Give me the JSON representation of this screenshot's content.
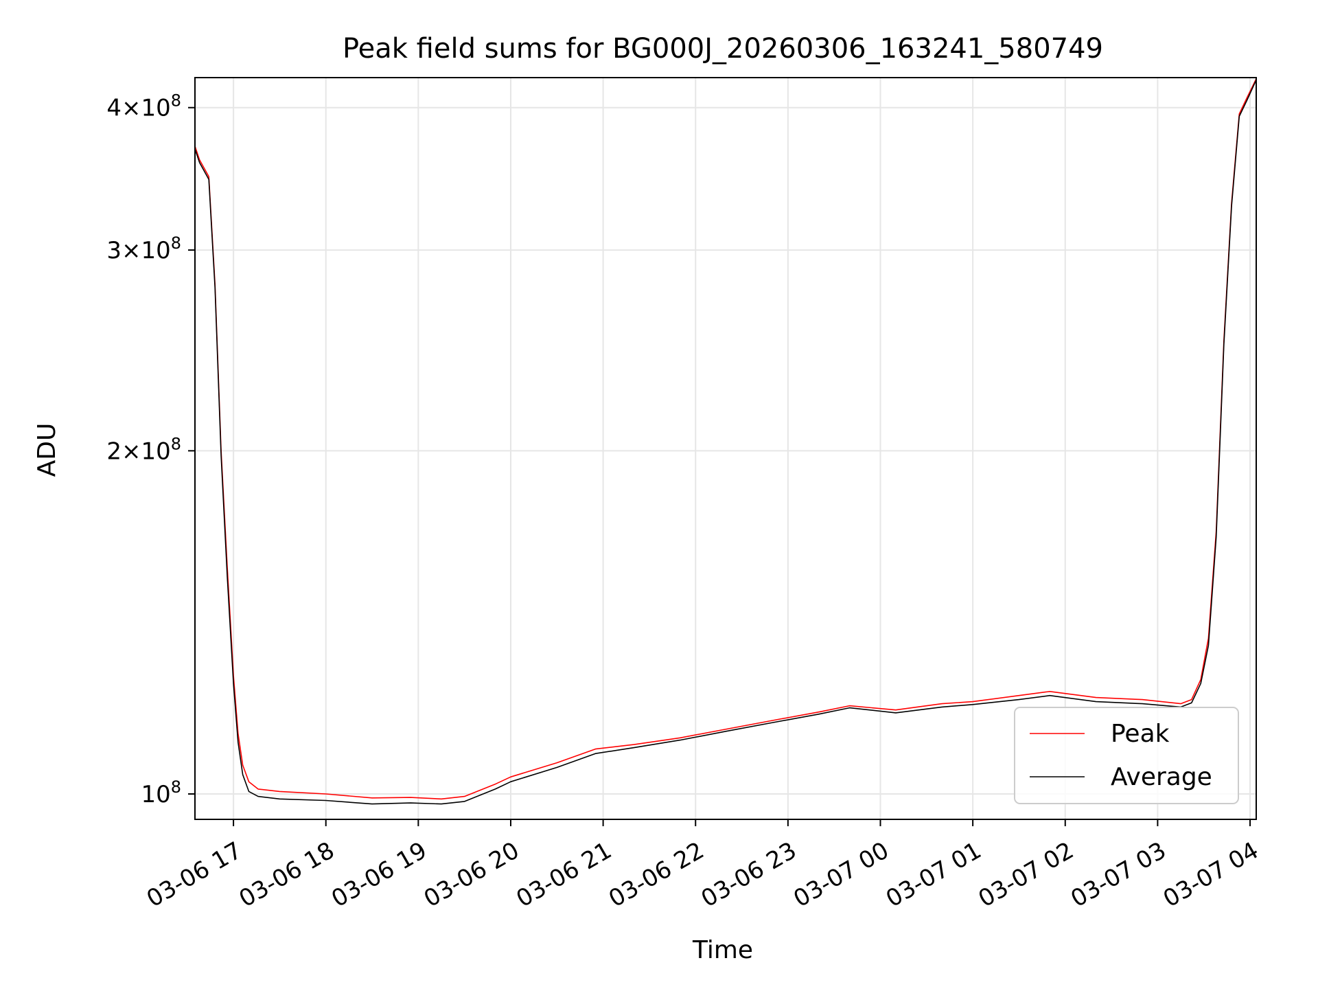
{
  "chart_data": {
    "type": "line",
    "title": "Peak field sums for BG000J_20260306_163241_580749",
    "xlabel": "Time",
    "ylabel": "ADU",
    "yscale": "log",
    "grid": true,
    "legend_position": "lower-right",
    "xlim": [
      "2026-03-06 16:35",
      "2026-03-07 04:04"
    ],
    "ylim": [
      95000000,
      425000000
    ],
    "x_ticks": [
      {
        "t": "2026-03-06 17:00",
        "label": "03-06 17"
      },
      {
        "t": "2026-03-06 18:00",
        "label": "03-06 18"
      },
      {
        "t": "2026-03-06 19:00",
        "label": "03-06 19"
      },
      {
        "t": "2026-03-06 20:00",
        "label": "03-06 20"
      },
      {
        "t": "2026-03-06 21:00",
        "label": "03-06 21"
      },
      {
        "t": "2026-03-06 22:00",
        "label": "03-06 22"
      },
      {
        "t": "2026-03-06 23:00",
        "label": "03-06 23"
      },
      {
        "t": "2026-03-07 00:00",
        "label": "03-07 00"
      },
      {
        "t": "2026-03-07 01:00",
        "label": "03-07 01"
      },
      {
        "t": "2026-03-07 02:00",
        "label": "03-07 02"
      },
      {
        "t": "2026-03-07 03:00",
        "label": "03-07 03"
      },
      {
        "t": "2026-03-07 04:00",
        "label": "03-07 04"
      }
    ],
    "y_ticks": [
      {
        "value": 100000000,
        "mant": "",
        "exp": "8",
        "base": "10"
      },
      {
        "value": 200000000,
        "mant": "2",
        "exp": "8",
        "base": "10"
      },
      {
        "value": 300000000,
        "mant": "3",
        "exp": "8",
        "base": "10"
      },
      {
        "value": 400000000,
        "mant": "4",
        "exp": "8",
        "base": "10"
      }
    ],
    "tick_times_symbol": "×",
    "series": [
      {
        "name": "Peak",
        "color": "#ff0000",
        "points": [
          [
            "2026-03-06 16:35",
            370000000
          ],
          [
            "2026-03-06 16:38",
            360000000
          ],
          [
            "2026-03-06 16:44",
            348000000
          ],
          [
            "2026-03-06 16:48",
            280000000
          ],
          [
            "2026-03-06 16:52",
            200000000
          ],
          [
            "2026-03-06 16:56",
            158000000
          ],
          [
            "2026-03-06 17:00",
            127000000
          ],
          [
            "2026-03-06 17:03",
            113000000
          ],
          [
            "2026-03-06 17:06",
            106000000
          ],
          [
            "2026-03-06 17:10",
            102500000
          ],
          [
            "2026-03-06 17:16",
            101000000
          ],
          [
            "2026-03-06 17:30",
            100500000
          ],
          [
            "2026-03-06 18:00",
            100000000
          ],
          [
            "2026-03-06 18:30",
            99200000
          ],
          [
            "2026-03-06 18:55",
            99300000
          ],
          [
            "2026-03-06 19:15",
            99000000
          ],
          [
            "2026-03-06 19:30",
            99500000
          ],
          [
            "2026-03-06 19:50",
            102000000
          ],
          [
            "2026-03-06 20:00",
            103500000
          ],
          [
            "2026-03-06 20:30",
            106500000
          ],
          [
            "2026-03-06 20:55",
            109500000
          ],
          [
            "2026-03-06 21:20",
            110500000
          ],
          [
            "2026-03-06 21:50",
            112000000
          ],
          [
            "2026-03-06 22:20",
            114000000
          ],
          [
            "2026-03-06 22:50",
            116000000
          ],
          [
            "2026-03-06 23:20",
            118000000
          ],
          [
            "2026-03-06 23:40",
            119500000
          ],
          [
            "2026-03-07 00:10",
            118500000
          ],
          [
            "2026-03-07 00:40",
            120000000
          ],
          [
            "2026-03-07 01:00",
            120500000
          ],
          [
            "2026-03-07 01:30",
            122000000
          ],
          [
            "2026-03-07 01:50",
            123000000
          ],
          [
            "2026-03-07 02:20",
            121500000
          ],
          [
            "2026-03-07 02:50",
            121000000
          ],
          [
            "2026-03-07 03:15",
            120000000
          ],
          [
            "2026-03-07 03:22",
            121000000
          ],
          [
            "2026-03-07 03:28",
            126000000
          ],
          [
            "2026-03-07 03:33",
            137000000
          ],
          [
            "2026-03-07 03:38",
            170000000
          ],
          [
            "2026-03-07 03:43",
            250000000
          ],
          [
            "2026-03-07 03:48",
            330000000
          ],
          [
            "2026-03-07 03:53",
            395000000
          ],
          [
            "2026-03-07 03:58",
            408000000
          ],
          [
            "2026-03-07 04:04",
            424000000
          ]
        ]
      },
      {
        "name": "Average",
        "color": "#000000",
        "points": [
          [
            "2026-03-06 16:35",
            368000000
          ],
          [
            "2026-03-06 16:38",
            358000000
          ],
          [
            "2026-03-06 16:44",
            346000000
          ],
          [
            "2026-03-06 16:48",
            278000000
          ],
          [
            "2026-03-06 16:52",
            198000000
          ],
          [
            "2026-03-06 16:56",
            155000000
          ],
          [
            "2026-03-06 17:00",
            125000000
          ],
          [
            "2026-03-06 17:03",
            111000000
          ],
          [
            "2026-03-06 17:06",
            104000000
          ],
          [
            "2026-03-06 17:10",
            100500000
          ],
          [
            "2026-03-06 17:16",
            99500000
          ],
          [
            "2026-03-06 17:30",
            99000000
          ],
          [
            "2026-03-06 18:00",
            98700000
          ],
          [
            "2026-03-06 18:30",
            98000000
          ],
          [
            "2026-03-06 18:55",
            98200000
          ],
          [
            "2026-03-06 19:15",
            98000000
          ],
          [
            "2026-03-06 19:30",
            98500000
          ],
          [
            "2026-03-06 19:50",
            101000000
          ],
          [
            "2026-03-06 20:00",
            102500000
          ],
          [
            "2026-03-06 20:30",
            105500000
          ],
          [
            "2026-03-06 20:55",
            108500000
          ],
          [
            "2026-03-06 21:20",
            109800000
          ],
          [
            "2026-03-06 21:50",
            111500000
          ],
          [
            "2026-03-06 22:20",
            113500000
          ],
          [
            "2026-03-06 22:50",
            115500000
          ],
          [
            "2026-03-06 23:20",
            117500000
          ],
          [
            "2026-03-06 23:40",
            119000000
          ],
          [
            "2026-03-07 00:10",
            117800000
          ],
          [
            "2026-03-07 00:40",
            119200000
          ],
          [
            "2026-03-07 01:00",
            119800000
          ],
          [
            "2026-03-07 01:30",
            121000000
          ],
          [
            "2026-03-07 01:50",
            122000000
          ],
          [
            "2026-03-07 02:20",
            120500000
          ],
          [
            "2026-03-07 02:50",
            120000000
          ],
          [
            "2026-03-07 03:15",
            119200000
          ],
          [
            "2026-03-07 03:22",
            120200000
          ],
          [
            "2026-03-07 03:28",
            125000000
          ],
          [
            "2026-03-07 03:33",
            135000000
          ],
          [
            "2026-03-07 03:38",
            168000000
          ],
          [
            "2026-03-07 03:43",
            248000000
          ],
          [
            "2026-03-07 03:48",
            328000000
          ],
          [
            "2026-03-07 03:53",
            393000000
          ],
          [
            "2026-03-07 03:58",
            406000000
          ],
          [
            "2026-03-07 04:04",
            423000000
          ]
        ]
      }
    ]
  }
}
